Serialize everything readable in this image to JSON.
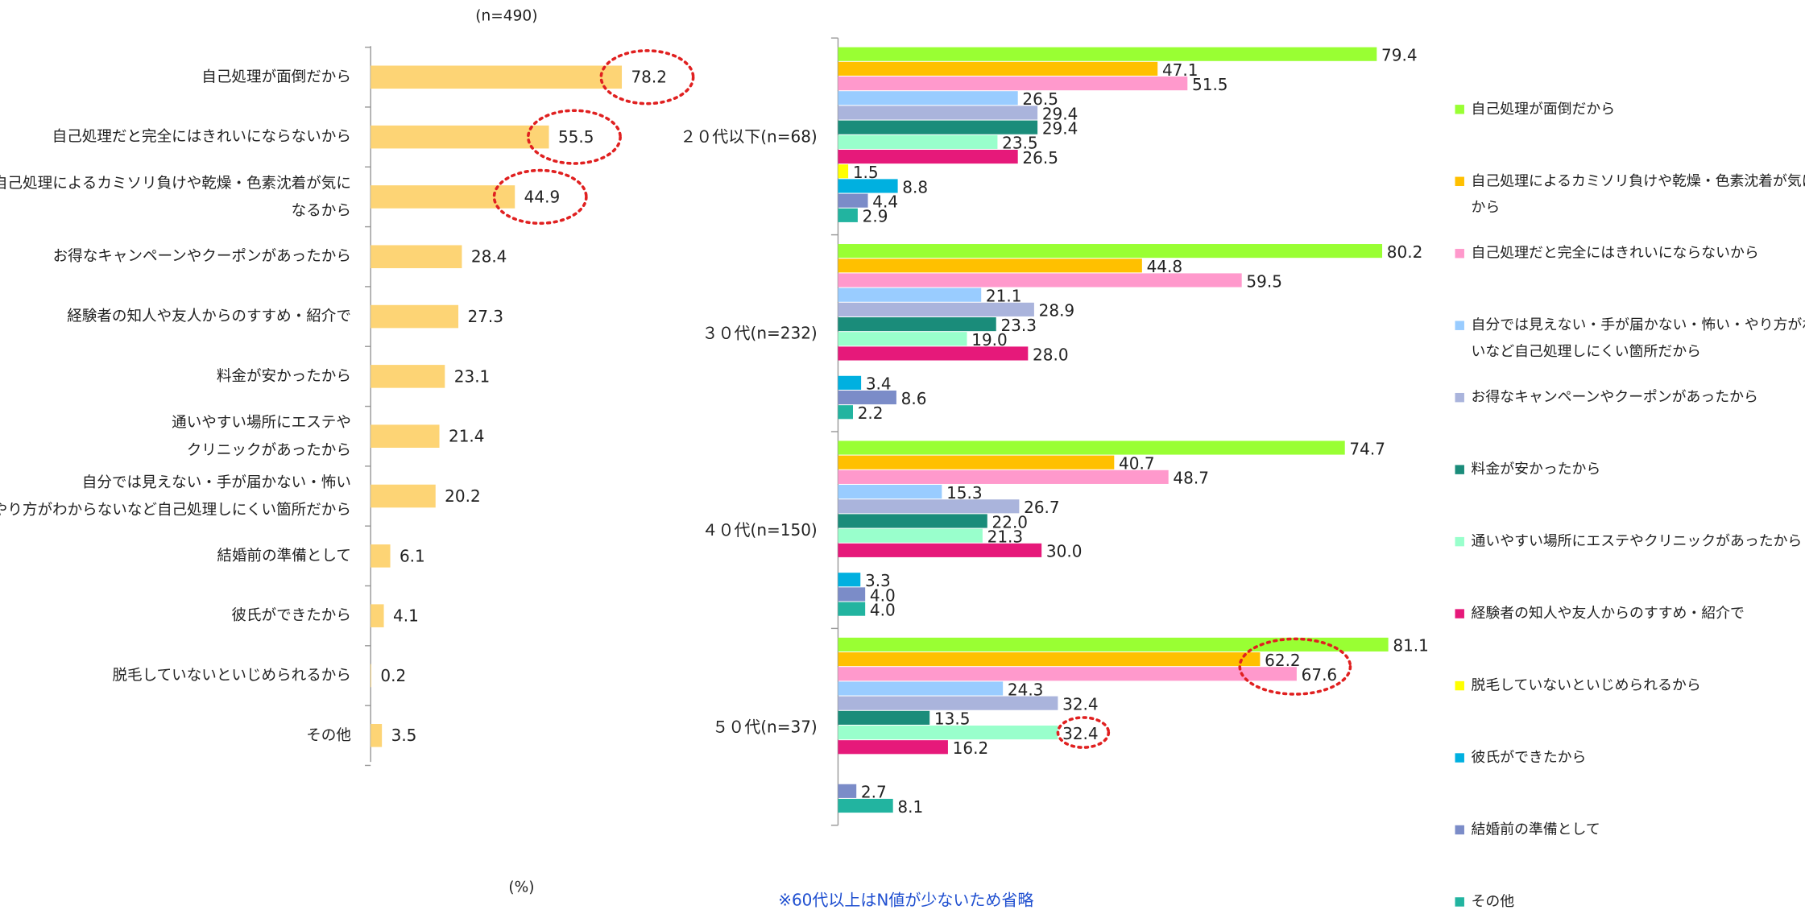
{
  "chart_data": [
    {
      "type": "bar",
      "orientation": "horizontal",
      "subtitle": "(n=490)",
      "x_label": "(%)",
      "color": "#fdd475",
      "categories": [
        "自己処理が面倒だから",
        "自己処理だと完全にはきれいにならないから",
        "自己処理によるカミソリ負けや乾燥・色素沈着が気に\nなるから",
        "お得なキャンペーンやクーポンがあったから",
        "経験者の知人や友人からのすすめ・紹介で",
        "料金が安かったから",
        "通いやすい場所にエステや\nクリニックがあったから",
        "自分では見えない・手が届かない・怖い\n・やり方がわからないなど自己処理しにくい箇所だから",
        "結婚前の準備として",
        "彼氏ができたから",
        "脱毛していないといじめられるから",
        "その他"
      ],
      "values": [
        78.2,
        55.5,
        44.9,
        28.4,
        27.3,
        23.1,
        21.4,
        20.2,
        6.1,
        4.1,
        0.2,
        3.5
      ]
    },
    {
      "type": "grouped_bar",
      "orientation": "horizontal",
      "legend": "right",
      "note": "※60代以上はN値が少ないため省略",
      "categories": [
        "２０代以下(n=68)",
        "３０代(n=232)",
        "４０代(n=150)",
        "５０代(n=37)"
      ],
      "series": [
        {
          "name": "自己処理が面倒だから",
          "color": "#99ff33",
          "values": [
            79.4,
            80.2,
            74.7,
            81.1
          ],
          "value_labels": [
            "79.4",
            "80.2",
            "74.7",
            "81.1"
          ]
        },
        {
          "name": "自己処理によるカミソリ負けや乾燥・色素沈着が気になる\nから",
          "color": "#ffc000",
          "values": [
            47.1,
            44.8,
            40.7,
            62.2
          ],
          "value_labels": [
            "47.1",
            "44.8",
            "40.7",
            "62.2"
          ]
        },
        {
          "name": "自己処理だと完全にはきれいにならないから",
          "color": "#ff99cc",
          "values": [
            51.5,
            59.5,
            48.7,
            67.6
          ],
          "value_labels": [
            "51.5",
            "59.5",
            "48.7",
            "67.6"
          ]
        },
        {
          "name": "自分では見えない・手が届かない・怖い・やり方がわからな\nいなど自己処理しにくい箇所だから",
          "color": "#99ccff",
          "values": [
            26.5,
            21.1,
            15.3,
            24.3
          ],
          "value_labels": [
            "26.5",
            "21.1",
            "15.3",
            "24.3"
          ]
        },
        {
          "name": "お得なキャンペーンやクーポンがあったから",
          "color": "#aab4dc",
          "values": [
            29.4,
            28.9,
            26.7,
            32.4
          ],
          "value_labels": [
            "29.4",
            "28.9",
            "26.7",
            "32.4"
          ]
        },
        {
          "name": "料金が安かったから",
          "color": "#1a8c7a",
          "values": [
            29.4,
            23.3,
            22.0,
            13.5
          ],
          "value_labels": [
            "29.4",
            "23.3",
            "22.0",
            "13.5"
          ]
        },
        {
          "name": "通いやすい場所にエステやクリニックがあったから",
          "color": "#99ffcc",
          "values": [
            23.5,
            19.0,
            21.3,
            32.4
          ],
          "value_labels": [
            "23.5",
            "19.0",
            "21.3",
            "32.4"
          ]
        },
        {
          "name": "経験者の知人や友人からのすすめ・紹介で",
          "color": "#e6197a",
          "values": [
            26.5,
            28.0,
            30.0,
            16.2
          ],
          "value_labels": [
            "26.5",
            "28.0",
            "30.0",
            "16.2"
          ]
        },
        {
          "name": "脱毛していないといじめられるから",
          "color": "#ffff00",
          "values": [
            1.5,
            null,
            null,
            null
          ],
          "value_labels": [
            "1.5",
            null,
            null,
            null
          ]
        },
        {
          "name": "彼氏ができたから",
          "color": "#00b0e0",
          "values": [
            8.8,
            3.4,
            3.3,
            null
          ],
          "value_labels": [
            "8.8",
            "3.4",
            "3.3",
            null
          ]
        },
        {
          "name": "結婚前の準備として",
          "color": "#7b8cc8",
          "values": [
            4.4,
            8.6,
            4.0,
            2.7
          ],
          "value_labels": [
            "4.4",
            "8.6",
            "4.0",
            "2.7"
          ]
        },
        {
          "name": "その他",
          "color": "#22b4a0",
          "values": [
            2.9,
            2.2,
            4.0,
            8.1
          ],
          "value_labels": [
            "2.9",
            "2.2",
            "4.0",
            "8.1"
          ]
        }
      ]
    }
  ]
}
